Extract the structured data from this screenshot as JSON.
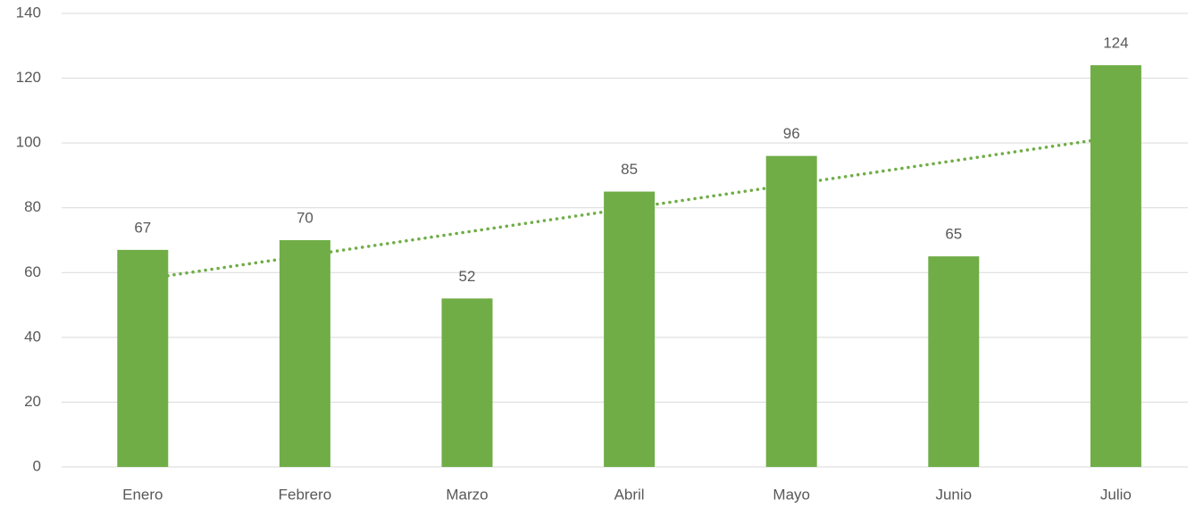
{
  "chart_data": {
    "type": "bar",
    "categories": [
      "Enero",
      "Febrero",
      "Marzo",
      "Abril",
      "Mayo",
      "Junio",
      "Julio"
    ],
    "values": [
      67,
      70,
      52,
      85,
      96,
      65,
      124
    ],
    "color": "#70ad47",
    "ylim": [
      0,
      140
    ],
    "yticks": [
      0,
      20,
      40,
      60,
      80,
      100,
      120,
      140
    ],
    "grid": true,
    "trendline": "linear"
  }
}
